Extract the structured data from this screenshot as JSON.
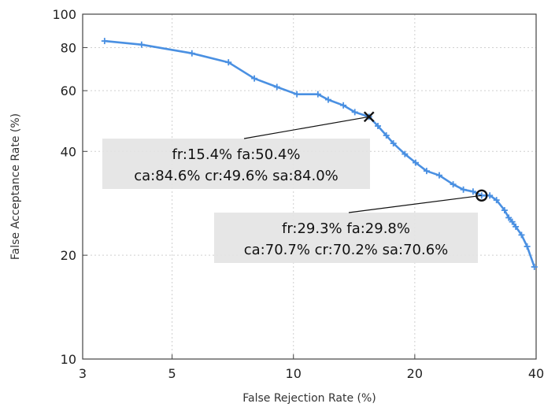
{
  "chart_data": {
    "type": "line",
    "xscale": "log",
    "yscale": "log",
    "xlabel": "False Rejection Rate (%)",
    "ylabel": "False Acceptance Rate (%)",
    "xlim": [
      3,
      40
    ],
    "ylim": [
      10,
      100
    ],
    "xticks": [
      3,
      5,
      10,
      20,
      40
    ],
    "yticks": [
      10,
      20,
      40,
      60,
      80,
      100
    ],
    "grid": true,
    "line_color": "#4a90e2",
    "series": [
      {
        "x": [
          3.4,
          4.2,
          5.6,
          6.9,
          8.0,
          9.1,
          10.2,
          11.5,
          12.2,
          13.3,
          14.2,
          15.4,
          16.2,
          17.0,
          17.7,
          18.9,
          20.1,
          21.4,
          23.0,
          24.9,
          26.4,
          27.9,
          29.3,
          30.7,
          31.9,
          33.4,
          34.2,
          34.9,
          35.6,
          36.8,
          38.0,
          39.6
        ],
        "y": [
          83.6,
          81.6,
          77.0,
          72.5,
          65.1,
          61.5,
          58.6,
          58.6,
          56.5,
          54.4,
          52.0,
          50.4,
          47.4,
          44.5,
          42.2,
          39.3,
          37.1,
          35.1,
          34.1,
          32.1,
          31.0,
          30.6,
          29.8,
          29.8,
          28.9,
          27.0,
          25.7,
          25.0,
          24.2,
          22.9,
          21.2,
          18.5
        ]
      }
    ],
    "annotations": [
      {
        "marker": "X",
        "x": 15.4,
        "y": 50.4,
        "line1": "fr:15.4% fa:50.4%",
        "line2": "ca:84.6% cr:49.6% sa:84.0%"
      },
      {
        "marker": "O",
        "x": 29.3,
        "y": 29.8,
        "line1": "fr:29.3% fa:29.8%",
        "line2": "ca:70.7% cr:70.2% sa:70.6%"
      }
    ]
  }
}
